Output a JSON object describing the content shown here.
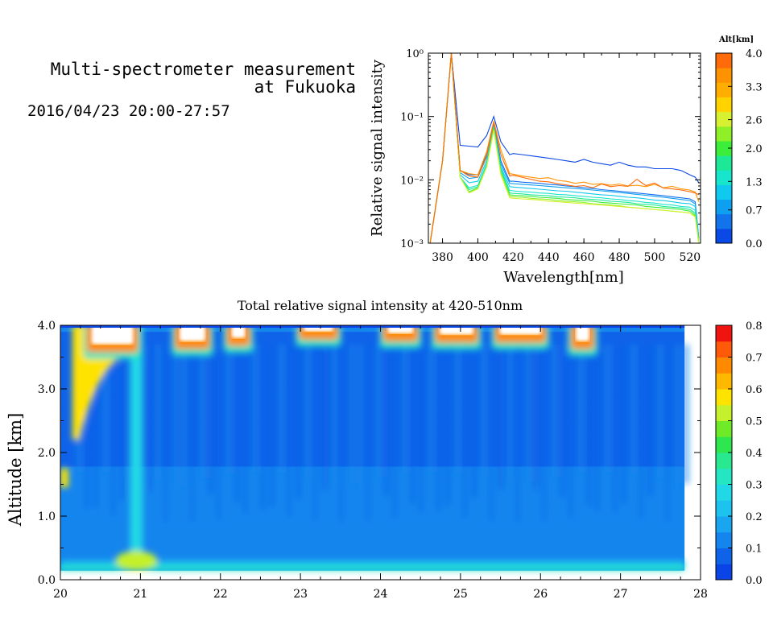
{
  "header": {
    "title_line1": "Multi-spectrometer measurement",
    "title_line2": "at Fukuoka",
    "datetime": "2016/04/23 20:00-27:57"
  },
  "colors": {
    "spectrum_colorbar": [
      "#0b49e6",
      "#1273ea",
      "#0f9ff0",
      "#10c9ee",
      "#17e6cc",
      "#1de895",
      "#3cee3a",
      "#90f028",
      "#d7f032",
      "#ffd300",
      "#ffae00",
      "#ff9200",
      "#ff6a0a"
    ],
    "heatmap_colorbar": [
      "#0b44e6",
      "#0f63e9",
      "#1585ee",
      "#19a5f0",
      "#1ec2ee",
      "#20d8e6",
      "#25e6c2",
      "#29e890",
      "#2fe64e",
      "#6fea28",
      "#c4f02c",
      "#ffe300",
      "#ffb800",
      "#ff8a00",
      "#ff5a0a",
      "#f01410"
    ]
  },
  "chart_data": [
    {
      "type": "line",
      "title": "",
      "xlabel": "Wavelength[nm]",
      "ylabel": "Relative signal intensity",
      "xlim": [
        372,
        526
      ],
      "ylim": [
        0.001,
        1
      ],
      "y_scale": "log",
      "x_ticks": [
        "380",
        "400",
        "420",
        "440",
        "460",
        "480",
        "500",
        "520"
      ],
      "x_tick_values": [
        380,
        400,
        420,
        440,
        460,
        480,
        500,
        520
      ],
      "y_ticks": [
        "10⁻³",
        "10⁻²",
        "10⁻¹",
        "10⁰"
      ],
      "y_tick_values": [
        0.001,
        0.01,
        0.1,
        1
      ],
      "colorbar": {
        "label": "Alt[km]",
        "ticks": [
          "0.0",
          "0.7",
          "1.3",
          "2.0",
          "2.6",
          "3.3",
          "4.0"
        ],
        "range": [
          0,
          4
        ]
      },
      "x": [
        373,
        380,
        385,
        390,
        395,
        400,
        405,
        409,
        413,
        418,
        420,
        425,
        430,
        435,
        440,
        445,
        450,
        455,
        460,
        465,
        470,
        475,
        480,
        485,
        490,
        495,
        500,
        505,
        510,
        515,
        520,
        523,
        525
      ],
      "series": [
        {
          "altitude_km": 0.0,
          "color": "#0b49e6",
          "values": [
            0.001,
            0.02,
            1.0,
            0.035,
            0.034,
            0.033,
            0.05,
            0.1,
            0.04,
            0.025,
            0.026,
            0.025,
            0.024,
            0.023,
            0.022,
            0.021,
            0.02,
            0.019,
            0.021,
            0.019,
            0.018,
            0.017,
            0.019,
            0.017,
            0.016,
            0.016,
            0.015,
            0.015,
            0.015,
            0.014,
            0.012,
            0.011,
            0.009
          ]
        },
        {
          "altitude_km": 0.3,
          "color": "#0f6fea",
          "values": [
            0.001,
            0.02,
            1.0,
            0.014,
            0.012,
            0.012,
            0.025,
            0.075,
            0.02,
            0.0095,
            0.0095,
            0.0092,
            0.009,
            0.0088,
            0.0085,
            0.0083,
            0.008,
            0.0078,
            0.0075,
            0.0073,
            0.007,
            0.0068,
            0.0066,
            0.0064,
            0.0062,
            0.006,
            0.0058,
            0.0056,
            0.0054,
            0.0052,
            0.005,
            0.0045,
            0.0012
          ]
        },
        {
          "altitude_km": 0.7,
          "color": "#0f9ff0",
          "values": [
            0.001,
            0.02,
            1.0,
            0.013,
            0.0105,
            0.011,
            0.023,
            0.073,
            0.018,
            0.0088,
            0.0087,
            0.0085,
            0.0083,
            0.0081,
            0.0079,
            0.0077,
            0.0075,
            0.0073,
            0.0071,
            0.0069,
            0.0067,
            0.0065,
            0.0063,
            0.0061,
            0.0059,
            0.0057,
            0.0055,
            0.0053,
            0.0051,
            0.0049,
            0.0047,
            0.0042,
            0.0012
          ]
        },
        {
          "altitude_km": 1.0,
          "color": "#10c9ee",
          "values": [
            0.001,
            0.02,
            1.0,
            0.012,
            0.009,
            0.0095,
            0.02,
            0.07,
            0.016,
            0.0078,
            0.0077,
            0.0075,
            0.0073,
            0.0071,
            0.0069,
            0.0067,
            0.0066,
            0.0064,
            0.0062,
            0.006,
            0.0058,
            0.0057,
            0.0055,
            0.0053,
            0.0052,
            0.005,
            0.0048,
            0.0047,
            0.0045,
            0.0043,
            0.0042,
            0.0038,
            0.0011
          ]
        },
        {
          "altitude_km": 1.3,
          "color": "#17e6cc",
          "values": [
            0.001,
            0.02,
            1.0,
            0.011,
            0.0075,
            0.0082,
            0.018,
            0.068,
            0.015,
            0.0068,
            0.0067,
            0.0065,
            0.0064,
            0.0062,
            0.0061,
            0.0059,
            0.0058,
            0.0056,
            0.0055,
            0.0053,
            0.0052,
            0.005,
            0.0049,
            0.0047,
            0.0046,
            0.0044,
            0.0043,
            0.0041,
            0.004,
            0.0038,
            0.0037,
            0.0033,
            0.0011
          ]
        },
        {
          "altitude_km": 1.6,
          "color": "#1de895",
          "values": [
            0.001,
            0.02,
            1.0,
            0.011,
            0.007,
            0.0078,
            0.017,
            0.066,
            0.014,
            0.0062,
            0.0061,
            0.006,
            0.0058,
            0.0057,
            0.0056,
            0.0054,
            0.0053,
            0.0052,
            0.005,
            0.0049,
            0.0048,
            0.0046,
            0.0045,
            0.0044,
            0.0042,
            0.0041,
            0.004,
            0.0038,
            0.0037,
            0.0036,
            0.0034,
            0.003,
            0.001
          ]
        },
        {
          "altitude_km": 2.0,
          "color": "#3cee3a",
          "values": [
            0.001,
            0.02,
            1.0,
            0.011,
            0.0065,
            0.0075,
            0.016,
            0.064,
            0.013,
            0.0058,
            0.0057,
            0.0056,
            0.0055,
            0.0053,
            0.0052,
            0.0051,
            0.0049,
            0.0048,
            0.0047,
            0.0046,
            0.0044,
            0.0043,
            0.0042,
            0.0041,
            0.004,
            0.0038,
            0.0037,
            0.0036,
            0.0035,
            0.0034,
            0.0032,
            0.0028,
            0.001
          ]
        },
        {
          "altitude_km": 2.3,
          "color": "#90f028",
          "values": [
            0.001,
            0.02,
            1.0,
            0.011,
            0.0063,
            0.0073,
            0.016,
            0.062,
            0.013,
            0.0055,
            0.0054,
            0.0053,
            0.0051,
            0.005,
            0.0049,
            0.0047,
            0.0046,
            0.0045,
            0.0044,
            0.0042,
            0.0041,
            0.004,
            0.0039,
            0.0037,
            0.0036,
            0.0035,
            0.0034,
            0.0033,
            0.0032,
            0.0031,
            0.003,
            0.0027,
            0.001
          ]
        },
        {
          "altitude_km": 2.6,
          "color": "#d7f032",
          "values": [
            0.001,
            0.02,
            1.0,
            0.011,
            0.0062,
            0.0072,
            0.016,
            0.06,
            0.012,
            0.0052,
            0.0051,
            0.005,
            0.0049,
            0.0048,
            0.0046,
            0.0045,
            0.0044,
            0.0043,
            0.0042,
            0.0041,
            0.004,
            0.0039,
            0.0038,
            0.0037,
            0.0036,
            0.0035,
            0.0034,
            0.0033,
            0.0032,
            0.0031,
            0.003,
            0.0026,
            0.001
          ]
        },
        {
          "altitude_km": 3.6,
          "color": "#ff9200",
          "values": [
            0.001,
            0.02,
            1.0,
            0.014,
            0.0125,
            0.012,
            0.028,
            0.085,
            0.03,
            0.0125,
            0.0123,
            0.0115,
            0.011,
            0.0105,
            0.0108,
            0.0098,
            0.0095,
            0.0088,
            0.0092,
            0.0085,
            0.0087,
            0.0082,
            0.0086,
            0.008,
            0.0082,
            0.0078,
            0.0085,
            0.0075,
            0.0079,
            0.0072,
            0.0069,
            0.0064,
            0.0045
          ]
        },
        {
          "altitude_km": 3.9,
          "color": "#ff6a0a",
          "values": [
            0.001,
            0.02,
            1.0,
            0.014,
            0.0115,
            0.011,
            0.024,
            0.08,
            0.025,
            0.0115,
            0.0118,
            0.011,
            0.0102,
            0.0095,
            0.0093,
            0.0087,
            0.0083,
            0.0079,
            0.0081,
            0.0075,
            0.0086,
            0.0078,
            0.0081,
            0.0079,
            0.0102,
            0.0081,
            0.0089,
            0.0074,
            0.0072,
            0.0069,
            0.0065,
            0.0062,
            0.0058
          ]
        }
      ]
    },
    {
      "type": "heatmap",
      "title": "Total relative signal intensity at 420-510nm",
      "xlabel": "",
      "ylabel": "Altitude [km]",
      "xlim": [
        20,
        28
      ],
      "ylim": [
        0,
        4
      ],
      "x_ticks": [
        "20",
        "21",
        "22",
        "23",
        "24",
        "25",
        "26",
        "27",
        "28"
      ],
      "x_tick_values": [
        20,
        21,
        22,
        23,
        24,
        25,
        26,
        27,
        28
      ],
      "y_ticks": [
        "0.0",
        "1.0",
        "2.0",
        "3.0",
        "4.0"
      ],
      "y_tick_values": [
        0,
        1,
        2,
        3,
        4
      ],
      "data_x_range": [
        20.0,
        27.8
      ],
      "data_y_range": [
        0.15,
        4.0
      ],
      "colorbar": {
        "ticks": [
          "0.0",
          "0.1",
          "0.2",
          "0.3",
          "0.4",
          "0.5",
          "0.6",
          "0.7",
          "0.8"
        ],
        "range": [
          0,
          0.8
        ]
      },
      "features": [
        {
          "kind": "surface_layer",
          "altitude_km": [
            0.15,
            0.3
          ],
          "value": 0.35
        },
        {
          "kind": "saturated_cloud_low_edge",
          "time_h": [
            20.0,
            20.05
          ],
          "altitude_km": [
            1.45,
            1.75
          ],
          "value": 0.6
        },
        {
          "kind": "aerosol_column",
          "time_h": 20.95,
          "altitude_km": [
            0.2,
            4.0
          ],
          "value": 0.28
        },
        {
          "kind": "aerosol_plume",
          "time_h": [
            20.15,
            20.9
          ],
          "altitude_km": [
            2.2,
            4.0
          ],
          "value": 0.55
        },
        {
          "kind": "saturated_cloud",
          "time_h": [
            20.35,
            20.95
          ],
          "altitude_km": [
            3.65,
            4.0
          ]
        },
        {
          "kind": "saturated_cloud",
          "time_h": [
            21.45,
            21.85
          ],
          "altitude_km": [
            3.7,
            4.0
          ]
        },
        {
          "kind": "saturated_cloud",
          "time_h": [
            22.1,
            22.35
          ],
          "altitude_km": [
            3.75,
            4.0
          ]
        },
        {
          "kind": "saturated_cloud",
          "time_h": [
            23.0,
            23.45
          ],
          "altitude_km": [
            3.85,
            4.0
          ]
        },
        {
          "kind": "saturated_cloud",
          "time_h": [
            24.05,
            24.45
          ],
          "altitude_km": [
            3.82,
            4.0
          ]
        },
        {
          "kind": "saturated_cloud",
          "time_h": [
            24.7,
            25.2
          ],
          "altitude_km": [
            3.8,
            4.0
          ]
        },
        {
          "kind": "saturated_cloud",
          "time_h": [
            25.45,
            26.05
          ],
          "altitude_km": [
            3.8,
            4.0
          ]
        },
        {
          "kind": "saturated_cloud",
          "time_h": [
            26.4,
            26.65
          ],
          "altitude_km": [
            3.7,
            4.0
          ]
        }
      ]
    }
  ]
}
